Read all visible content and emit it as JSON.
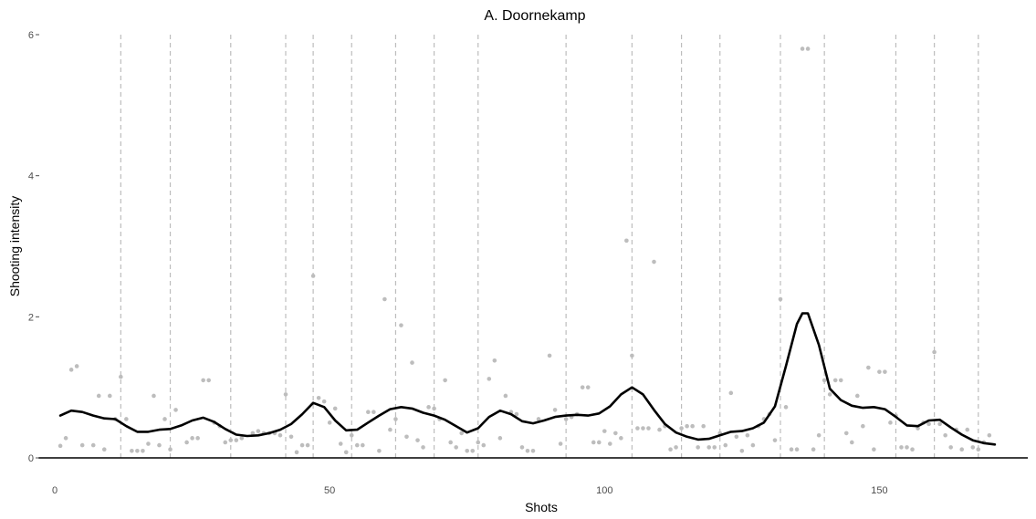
{
  "chart_data": {
    "type": "scatter",
    "title": "A. Doornekamp",
    "xlabel": "Shots",
    "ylabel": "Shooting intensity",
    "xlim": [
      -3,
      177
    ],
    "ylim": [
      0,
      6
    ],
    "x_ticks": [
      0,
      50,
      100,
      150
    ],
    "y_ticks": [
      0,
      2,
      4,
      6
    ],
    "grid": false,
    "legend": "none",
    "colors": {
      "points": "#bdbdbd",
      "smooth": "#000000",
      "vlines": "#bdbdbd",
      "baseline": "#000000"
    },
    "vlines": [
      12,
      21,
      32,
      42,
      47,
      54,
      62,
      69,
      77,
      93,
      105,
      114,
      121,
      132,
      140,
      153,
      160,
      168
    ],
    "points": [
      [
        1,
        0.17
      ],
      [
        2,
        0.28
      ],
      [
        3,
        1.25
      ],
      [
        4,
        1.3
      ],
      [
        5,
        0.18
      ],
      [
        7,
        0.18
      ],
      [
        8,
        0.88
      ],
      [
        9,
        0.12
      ],
      [
        10,
        0.88
      ],
      [
        11,
        0.55
      ],
      [
        12,
        1.15
      ],
      [
        13,
        0.55
      ],
      [
        14,
        0.1
      ],
      [
        15,
        0.1
      ],
      [
        16,
        0.1
      ],
      [
        17,
        0.2
      ],
      [
        18,
        0.88
      ],
      [
        19,
        0.18
      ],
      [
        20,
        0.55
      ],
      [
        21,
        0.12
      ],
      [
        22,
        0.68
      ],
      [
        24,
        0.22
      ],
      [
        25,
        0.28
      ],
      [
        26,
        0.28
      ],
      [
        27,
        1.1
      ],
      [
        28,
        1.1
      ],
      [
        29,
        0.5
      ],
      [
        30,
        0.45
      ],
      [
        31,
        0.22
      ],
      [
        32,
        0.25
      ],
      [
        33,
        0.25
      ],
      [
        34,
        0.28
      ],
      [
        36,
        0.35
      ],
      [
        37,
        0.38
      ],
      [
        38,
        0.35
      ],
      [
        39,
        0.35
      ],
      [
        40,
        0.35
      ],
      [
        41,
        0.32
      ],
      [
        42,
        0.9
      ],
      [
        43,
        0.3
      ],
      [
        44,
        0.08
      ],
      [
        45,
        0.18
      ],
      [
        46,
        0.18
      ],
      [
        47,
        2.58
      ],
      [
        48,
        0.85
      ],
      [
        49,
        0.8
      ],
      [
        50,
        0.5
      ],
      [
        51,
        0.7
      ],
      [
        52,
        0.2
      ],
      [
        53,
        0.08
      ],
      [
        54,
        0.32
      ],
      [
        55,
        0.18
      ],
      [
        56,
        0.18
      ],
      [
        57,
        0.65
      ],
      [
        58,
        0.65
      ],
      [
        59,
        0.1
      ],
      [
        60,
        2.25
      ],
      [
        61,
        0.4
      ],
      [
        62,
        0.55
      ],
      [
        63,
        1.88
      ],
      [
        64,
        0.3
      ],
      [
        65,
        1.35
      ],
      [
        66,
        0.25
      ],
      [
        67,
        0.15
      ],
      [
        68,
        0.72
      ],
      [
        69,
        0.7
      ],
      [
        70,
        0.55
      ],
      [
        71,
        1.1
      ],
      [
        72,
        0.22
      ],
      [
        73,
        0.15
      ],
      [
        74,
        0.35
      ],
      [
        75,
        0.1
      ],
      [
        76,
        0.1
      ],
      [
        77,
        0.22
      ],
      [
        78,
        0.18
      ],
      [
        79,
        1.12
      ],
      [
        80,
        1.38
      ],
      [
        81,
        0.28
      ],
      [
        82,
        0.88
      ],
      [
        83,
        0.65
      ],
      [
        84,
        0.62
      ],
      [
        85,
        0.15
      ],
      [
        86,
        0.1
      ],
      [
        87,
        0.1
      ],
      [
        88,
        0.55
      ],
      [
        90,
        1.45
      ],
      [
        91,
        0.68
      ],
      [
        92,
        0.2
      ],
      [
        93,
        0.55
      ],
      [
        94,
        0.58
      ],
      [
        95,
        0.62
      ],
      [
        96,
        1.0
      ],
      [
        97,
        1.0
      ],
      [
        98,
        0.22
      ],
      [
        99,
        0.22
      ],
      [
        100,
        0.38
      ],
      [
        101,
        0.2
      ],
      [
        102,
        0.35
      ],
      [
        103,
        0.28
      ],
      [
        104,
        3.08
      ],
      [
        105,
        1.45
      ],
      [
        106,
        0.42
      ],
      [
        107,
        0.42
      ],
      [
        108,
        0.42
      ],
      [
        109,
        2.78
      ],
      [
        110,
        0.4
      ],
      [
        111,
        0.45
      ],
      [
        112,
        0.12
      ],
      [
        113,
        0.15
      ],
      [
        114,
        0.42
      ],
      [
        115,
        0.45
      ],
      [
        116,
        0.45
      ],
      [
        117,
        0.15
      ],
      [
        118,
        0.45
      ],
      [
        119,
        0.15
      ],
      [
        120,
        0.15
      ],
      [
        121,
        0.35
      ],
      [
        122,
        0.18
      ],
      [
        123,
        0.92
      ],
      [
        124,
        0.3
      ],
      [
        125,
        0.1
      ],
      [
        126,
        0.32
      ],
      [
        127,
        0.18
      ],
      [
        128,
        0.45
      ],
      [
        129,
        0.55
      ],
      [
        130,
        0.62
      ],
      [
        131,
        0.25
      ],
      [
        132,
        2.25
      ],
      [
        133,
        0.72
      ],
      [
        134,
        0.12
      ],
      [
        135,
        0.12
      ],
      [
        136,
        5.8
      ],
      [
        137,
        5.8
      ],
      [
        138,
        0.12
      ],
      [
        139,
        0.32
      ],
      [
        140,
        1.1
      ],
      [
        141,
        0.9
      ],
      [
        142,
        1.1
      ],
      [
        143,
        1.1
      ],
      [
        144,
        0.35
      ],
      [
        145,
        0.22
      ],
      [
        146,
        0.88
      ],
      [
        147,
        0.45
      ],
      [
        148,
        1.28
      ],
      [
        149,
        0.12
      ],
      [
        150,
        1.22
      ],
      [
        151,
        1.22
      ],
      [
        152,
        0.5
      ],
      [
        153,
        0.6
      ],
      [
        154,
        0.15
      ],
      [
        155,
        0.15
      ],
      [
        156,
        0.12
      ],
      [
        157,
        0.42
      ],
      [
        158,
        0.5
      ],
      [
        159,
        0.48
      ],
      [
        160,
        1.5
      ],
      [
        161,
        0.48
      ],
      [
        162,
        0.32
      ],
      [
        163,
        0.15
      ],
      [
        164,
        0.4
      ],
      [
        165,
        0.12
      ],
      [
        166,
        0.4
      ],
      [
        167,
        0.15
      ],
      [
        168,
        0.12
      ],
      [
        169,
        0.22
      ],
      [
        170,
        0.32
      ]
    ],
    "smooth": [
      [
        1,
        0.6
      ],
      [
        3,
        0.67
      ],
      [
        5,
        0.65
      ],
      [
        7,
        0.6
      ],
      [
        9,
        0.56
      ],
      [
        11,
        0.55
      ],
      [
        13,
        0.45
      ],
      [
        15,
        0.37
      ],
      [
        17,
        0.37
      ],
      [
        19,
        0.4
      ],
      [
        21,
        0.41
      ],
      [
        23,
        0.46
      ],
      [
        25,
        0.53
      ],
      [
        27,
        0.57
      ],
      [
        29,
        0.51
      ],
      [
        31,
        0.41
      ],
      [
        33,
        0.33
      ],
      [
        35,
        0.31
      ],
      [
        37,
        0.32
      ],
      [
        39,
        0.35
      ],
      [
        41,
        0.4
      ],
      [
        43,
        0.48
      ],
      [
        45,
        0.62
      ],
      [
        47,
        0.78
      ],
      [
        49,
        0.72
      ],
      [
        51,
        0.53
      ],
      [
        53,
        0.39
      ],
      [
        55,
        0.4
      ],
      [
        57,
        0.5
      ],
      [
        59,
        0.6
      ],
      [
        61,
        0.69
      ],
      [
        63,
        0.72
      ],
      [
        65,
        0.7
      ],
      [
        67,
        0.64
      ],
      [
        69,
        0.6
      ],
      [
        71,
        0.54
      ],
      [
        73,
        0.45
      ],
      [
        75,
        0.36
      ],
      [
        77,
        0.42
      ],
      [
        79,
        0.58
      ],
      [
        81,
        0.67
      ],
      [
        83,
        0.62
      ],
      [
        85,
        0.52
      ],
      [
        87,
        0.49
      ],
      [
        89,
        0.53
      ],
      [
        91,
        0.58
      ],
      [
        93,
        0.6
      ],
      [
        95,
        0.61
      ],
      [
        97,
        0.6
      ],
      [
        99,
        0.63
      ],
      [
        101,
        0.73
      ],
      [
        103,
        0.9
      ],
      [
        105,
        1.0
      ],
      [
        107,
        0.9
      ],
      [
        109,
        0.68
      ],
      [
        111,
        0.48
      ],
      [
        113,
        0.36
      ],
      [
        115,
        0.3
      ],
      [
        117,
        0.26
      ],
      [
        119,
        0.27
      ],
      [
        121,
        0.32
      ],
      [
        123,
        0.37
      ],
      [
        125,
        0.38
      ],
      [
        127,
        0.42
      ],
      [
        129,
        0.5
      ],
      [
        131,
        0.73
      ],
      [
        133,
        1.3
      ],
      [
        135,
        1.9
      ],
      [
        136,
        2.05
      ],
      [
        137,
        2.05
      ],
      [
        139,
        1.6
      ],
      [
        141,
        0.98
      ],
      [
        143,
        0.82
      ],
      [
        145,
        0.74
      ],
      [
        147,
        0.71
      ],
      [
        149,
        0.72
      ],
      [
        151,
        0.69
      ],
      [
        153,
        0.58
      ],
      [
        155,
        0.46
      ],
      [
        157,
        0.45
      ],
      [
        159,
        0.53
      ],
      [
        161,
        0.54
      ],
      [
        163,
        0.43
      ],
      [
        165,
        0.33
      ],
      [
        167,
        0.25
      ],
      [
        169,
        0.21
      ],
      [
        171,
        0.19
      ]
    ]
  }
}
